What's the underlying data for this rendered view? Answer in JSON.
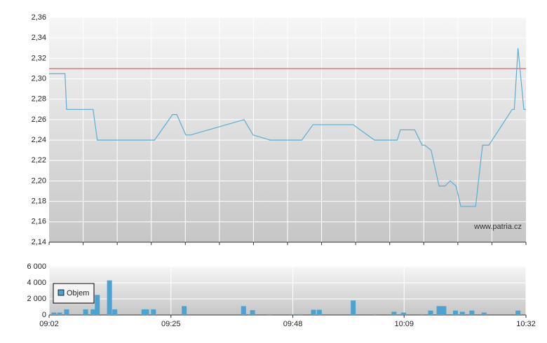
{
  "chart_data": [
    {
      "type": "line",
      "x": [
        542.0,
        545.0,
        545.3,
        550.3,
        551.1,
        561.9,
        565.3,
        566.1,
        567.8,
        568.7,
        578.8,
        580.5,
        583.7,
        589.7,
        591.8,
        599.4,
        603.4,
        607.7,
        608.3,
        611.0,
        612.4,
        612.9,
        614.1,
        615.6,
        616.7,
        617.7,
        618.8,
        619.7,
        622.5,
        623.8,
        625.0,
        629.4,
        629.8,
        630.5,
        631.6,
        632.0
      ],
      "series": [
        {
          "color": "#5aaed6",
          "values": [
            2.305,
            2.305,
            2.27,
            2.27,
            2.24,
            2.24,
            2.265,
            2.265,
            2.245,
            2.245,
            2.26,
            2.245,
            2.24,
            2.24,
            2.255,
            2.255,
            2.24,
            2.24,
            2.25,
            2.25,
            2.235,
            2.235,
            2.23,
            2.195,
            2.195,
            2.2,
            2.195,
            2.175,
            2.175,
            2.235,
            2.235,
            2.27,
            2.27,
            2.33,
            2.27,
            2.27
          ]
        }
      ],
      "xlim": [
        542,
        632
      ],
      "ylim": [
        2.14,
        2.36
      ],
      "yticks": [
        {
          "value": 2.14,
          "label": "2,14"
        },
        {
          "value": 2.16,
          "label": "2,16"
        },
        {
          "value": 2.18,
          "label": "2,18"
        },
        {
          "value": 2.2,
          "label": "2,20"
        },
        {
          "value": 2.22,
          "label": "2,22"
        },
        {
          "value": 2.24,
          "label": "2,24"
        },
        {
          "value": 2.26,
          "label": "2,26"
        },
        {
          "value": 2.28,
          "label": "2,28"
        },
        {
          "value": 2.3,
          "label": "2,30"
        },
        {
          "value": 2.32,
          "label": "2,32"
        },
        {
          "value": 2.34,
          "label": "2,34"
        },
        {
          "value": 2.36,
          "label": "2,36"
        }
      ],
      "reference_line": {
        "value": 2.31,
        "color": "#d04040"
      },
      "grid": true,
      "watermark": "www.patria.cz"
    },
    {
      "type": "bar",
      "x": [
        542.9,
        544.0,
        545.3,
        548.9,
        550.3,
        551.1,
        553.4,
        554.4,
        559.9,
        560.4,
        561.7,
        567.5,
        578.7,
        580.4,
        583.6,
        587.9,
        589.4,
        591.9,
        593.0,
        599.4,
        603.4,
        607.1,
        608.9,
        612.4,
        614.0,
        615.6,
        616.5,
        618.7,
        620.0,
        621.8,
        624.1,
        630.5
      ],
      "series": [
        {
          "name": "Objem",
          "color": "#4aa3d0",
          "values": [
            300,
            300,
            700,
            700,
            700,
            2500,
            4300,
            700,
            700,
            700,
            700,
            1100,
            1100,
            600,
            100,
            100,
            100,
            650,
            650,
            1800,
            100,
            400,
            300,
            100,
            550,
            1100,
            1100,
            550,
            400,
            550,
            300,
            550
          ]
        }
      ],
      "xlim": [
        542,
        632
      ],
      "xticks": [
        {
          "value": 542,
          "label": "09:02"
        },
        {
          "value": 565,
          "label": "09:25"
        },
        {
          "value": 588,
          "label": "09:48"
        },
        {
          "value": 609,
          "label": "10:09"
        },
        {
          "value": 632,
          "label": "10:32"
        }
      ],
      "ylim": [
        0,
        6000
      ],
      "yticks": [
        0,
        {
          "value": 2000,
          "label": "2 000"
        },
        {
          "value": 4000,
          "label": "4 000"
        },
        {
          "value": 6000,
          "label": "6 000"
        }
      ],
      "grid": true,
      "legend": "upper left"
    }
  ]
}
